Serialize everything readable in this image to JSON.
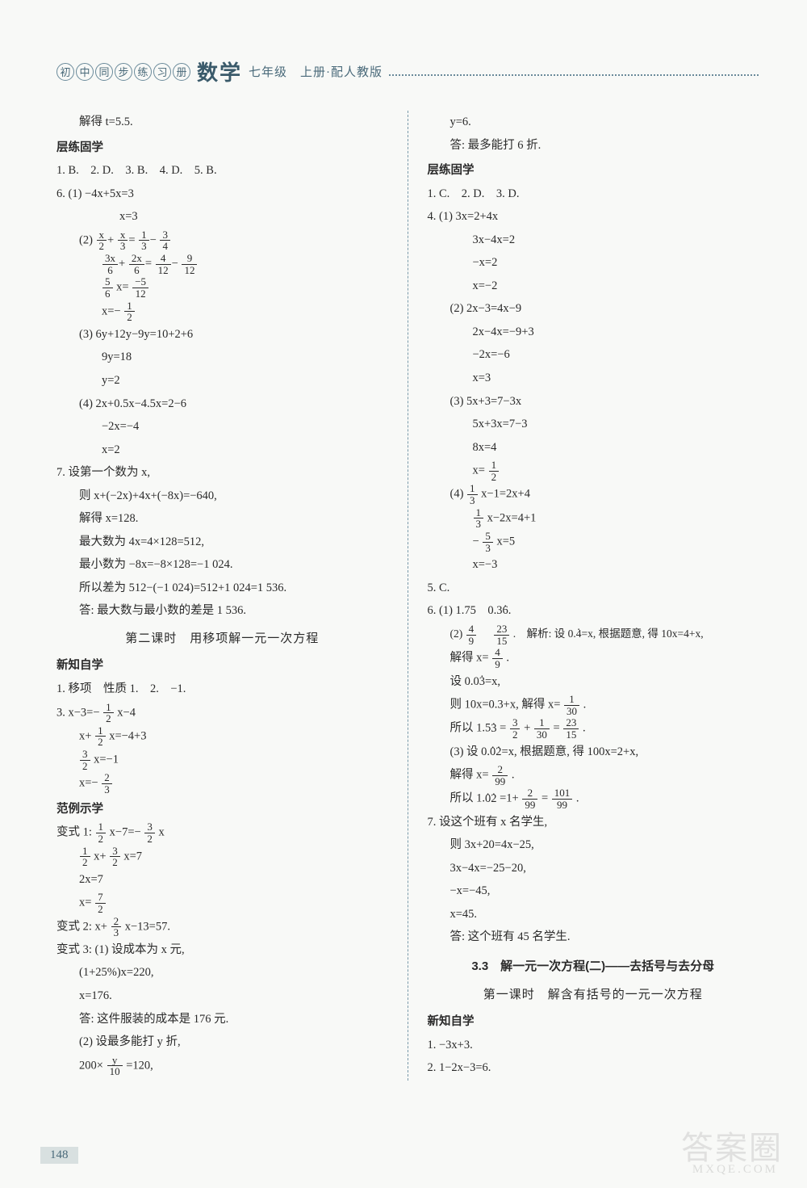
{
  "header": {
    "circled": [
      "初",
      "中",
      "同",
      "步",
      "练",
      "习",
      "册"
    ],
    "subject": "数学",
    "grade": "七年级　上册·配人教版"
  },
  "left": {
    "l0": "解得 t=5.5.",
    "sec1": "层练固学",
    "l1": "1. B.　2. D.　3. B.　4. D.　5. B.",
    "l2": "6. (1) −4x+5x=3",
    "l3": "x=3",
    "l4_pre": "(2) ",
    "f4a_n": "x",
    "f4a_d": "2",
    "f4b_n": "x",
    "f4b_d": "3",
    "f4c_n": "1",
    "f4c_d": "3",
    "f4d_n": "3",
    "f4d_d": "4",
    "f5a_n": "3x",
    "f5a_d": "6",
    "f5b_n": "2x",
    "f5b_d": "6",
    "f5c_n": "4",
    "f5c_d": "12",
    "f5d_n": "9",
    "f5d_d": "12",
    "f6a_n": "5",
    "f6a_d": "6",
    "l6_mid": "x=",
    "f6b_n": "−5",
    "f6b_d": "12",
    "l7_pre": "x=−",
    "f7_n": "1",
    "f7_d": "2",
    "l8": "(3) 6y+12y−9y=10+2+6",
    "l9": "9y=18",
    "l10": "y=2",
    "l11": "(4) 2x+0.5x−4.5x=2−6",
    "l12": "−2x=−4",
    "l13": "x=2",
    "l14": "7. 设第一个数为 x,",
    "l15": "则 x+(−2x)+4x+(−8x)=−640,",
    "l16": "解得 x=128.",
    "l17": "最大数为 4x=4×128=512,",
    "l18": "最小数为 −8x=−8×128=−1 024.",
    "l19": "所以差为 512−(−1 024)=512+1 024=1 536.",
    "l20": "答: 最大数与最小数的差是 1 536.",
    "lesson2": "第二课时　用移项解一元一次方程",
    "sec2": "新知自学",
    "l21": "1. 移项　性质 1.　2.　−1.",
    "l22_pre": "3. x−3=−",
    "f22_n": "1",
    "f22_d": "2",
    "l22_post": "x−4",
    "l23_pre": "x+",
    "f23_n": "1",
    "f23_d": "2",
    "l23_post": "x=−4+3",
    "f24_n": "3",
    "f24_d": "2",
    "l24_post": "x=−1",
    "l25_pre": "x=−",
    "f25_n": "2",
    "f25_d": "3",
    "sec3": "范例示学",
    "l26_pre": "变式 1: ",
    "f26a_n": "1",
    "f26a_d": "2",
    "l26_mid": "x−7=−",
    "f26b_n": "3",
    "f26b_d": "2",
    "l26_post": "x",
    "f27a_n": "1",
    "f27a_d": "2",
    "l27_mid": "x+",
    "f27b_n": "3",
    "f27b_d": "2",
    "l27_post": "x=7",
    "l28": "2x=7",
    "l29_pre": "x=",
    "f29_n": "7",
    "f29_d": "2",
    "l30_pre": "变式 2: x+",
    "f30_n": "2",
    "f30_d": "3",
    "l30_post": "x−13=57.",
    "l31": "变式 3: (1) 设成本为 x 元,",
    "l32": "(1+25%)x=220,",
    "l33": "x=176.",
    "l34": "答: 这件服装的成本是 176 元.",
    "l35": "(2) 设最多能打 y 折,",
    "l36_pre": "200×",
    "f36_n": "y",
    "f36_d": "10",
    "l36_post": "=120,"
  },
  "right": {
    "r0": "y=6.",
    "r1": "答: 最多能打 6 折.",
    "sec1": "层练固学",
    "r2": "1. C.　2. D.　3. D.",
    "r3": "4. (1) 3x=2+4x",
    "r4": "3x−4x=2",
    "r5": "−x=2",
    "r6": "x=−2",
    "r7": "(2) 2x−3=4x−9",
    "r8": "2x−4x=−9+3",
    "r9": "−2x=−6",
    "r10": "x=3",
    "r11": "(3) 5x+3=7−3x",
    "r12": "5x+3x=7−3",
    "r13": "8x=4",
    "r14_pre": "x=",
    "f14_n": "1",
    "f14_d": "2",
    "r15_pre": "(4) ",
    "f15_n": "1",
    "f15_d": "3",
    "r15_post": "x−1=2x+4",
    "f16_n": "1",
    "f16_d": "3",
    "r16_post": "x−2x=4+1",
    "r17_pre": "−",
    "f17_n": "5",
    "f17_d": "3",
    "r17_post": "x=5",
    "r18": "x=−3",
    "r19": "5. C.",
    "r20_pre": "6. (1) 1.75　0.3",
    "r20_dot": "6",
    "r20_post": ".",
    "r21_pre": "(2) ",
    "f21a_n": "4",
    "f21a_d": "9",
    "r21_mid": "　",
    "f21b_n": "23",
    "f21b_d": "15",
    "r21_post": ".　解析: 设 0.",
    "r21_dot": "4",
    "r21_post2": "=x, 根据题意, 得 10x=4+x,",
    "r22_pre": "解得 x=",
    "f22_n": "4",
    "f22_d": "9",
    "r22_post": ".",
    "r23_pre": "设 0.0",
    "r23_dot": "3",
    "r23_post": "=x,",
    "r24_pre": "则 10x=0.3+x, 解得 x=",
    "f24_n": "1",
    "f24_d": "30",
    "r24_post": ".",
    "r25_pre": "所以 1.5",
    "r25_dot": "3",
    "r25_mid": "=",
    "f25a_n": "3",
    "f25a_d": "2",
    "r25_mid2": "+",
    "f25b_n": "1",
    "f25b_d": "30",
    "r25_mid3": "=",
    "f25c_n": "23",
    "f25c_d": "15",
    "r25_post": ".",
    "r26_pre": "(3) 设 0.",
    "r26_dot1": "0",
    "r26_dot2": "2",
    "r26_post": "=x, 根据题意, 得 100x=2+x,",
    "r27_pre": "解得 x=",
    "f27_n": "2",
    "f27_d": "99",
    "r27_post": ".",
    "r28_pre": "所以 1.",
    "r28_dot1": "0",
    "r28_dot2": "2",
    "r28_mid": "=1+",
    "f28a_n": "2",
    "f28a_d": "99",
    "r28_mid2": "=",
    "f28b_n": "101",
    "f28b_d": "99",
    "r28_post": ".",
    "r29": "7. 设这个班有 x 名学生,",
    "r30": "则 3x+20=4x−25,",
    "r31": "3x−4x=−25−20,",
    "r32": "−x=−45,",
    "r33": "x=45.",
    "r34": "答: 这个班有 45 名学生.",
    "chapter": "3.3　解一元一次方程(二)——去括号与去分母",
    "lesson1": "第一课时　解含有括号的一元一次方程",
    "sec2": "新知自学",
    "r35": "1. −3x+3.",
    "r36": "2. 1−2x−3=6."
  },
  "pageNum": "148",
  "watermark": "答案圈",
  "watermarkSub": "MXQE.COM"
}
